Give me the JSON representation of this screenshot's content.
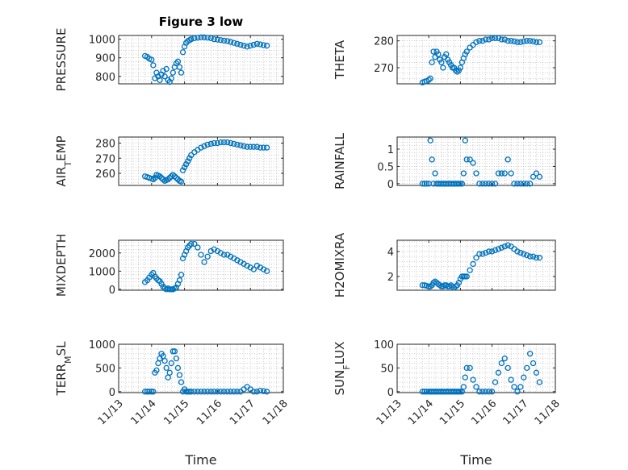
{
  "chart_data": [
    {
      "type": "scatter",
      "title": "Figure 3 low",
      "ylabel": "PRESSURE",
      "ylabel_parts": [
        {
          "t": "PRESSURE"
        }
      ],
      "xlabel": "",
      "xlim": [
        0,
        5
      ],
      "ylim": [
        760,
        1020
      ],
      "yticks": [
        800,
        900,
        1000
      ],
      "xticks": [
        0,
        1,
        2,
        3,
        4,
        5
      ],
      "xtick_labels": [
        "11/13",
        "11/14",
        "11/15",
        "11/16",
        "11/17",
        "11/18"
      ],
      "grid": true,
      "series": [
        {
          "x": [
            0.8,
            0.87,
            0.93,
            1.0,
            1.05,
            1.1,
            1.15,
            1.2,
            1.25,
            1.3,
            1.35,
            1.4,
            1.45,
            1.5,
            1.55,
            1.6,
            1.65,
            1.7,
            1.75,
            1.8,
            1.85,
            1.9,
            1.95,
            2.0,
            2.05,
            2.1,
            2.15,
            2.2,
            2.3,
            2.4,
            2.5,
            2.6,
            2.7,
            2.8,
            2.9,
            3.0,
            3.1,
            3.2,
            3.3,
            3.4,
            3.5,
            3.6,
            3.7,
            3.8,
            3.9,
            4.0,
            4.1,
            4.2,
            4.3,
            4.4,
            4.5
          ],
          "y": [
            910,
            905,
            895,
            890,
            860,
            790,
            820,
            800,
            780,
            810,
            830,
            800,
            840,
            780,
            770,
            790,
            820,
            850,
            870,
            880,
            850,
            820,
            930,
            960,
            980,
            990,
            995,
            1000,
            1005,
            1008,
            1010,
            1010,
            1008,
            1005,
            1000,
            998,
            995,
            992,
            990,
            985,
            980,
            975,
            970,
            965,
            960,
            965,
            970,
            975,
            972,
            968,
            965
          ]
        }
      ]
    },
    {
      "type": "scatter",
      "title": "",
      "ylabel": "THETA",
      "ylabel_parts": [
        {
          "t": "THETA"
        }
      ],
      "xlabel": "",
      "xlim": [
        0,
        5
      ],
      "ylim": [
        264,
        282
      ],
      "yticks": [
        270,
        280
      ],
      "xticks": [
        0,
        1,
        2,
        3,
        4,
        5
      ],
      "xtick_labels": [
        "11/13",
        "11/14",
        "11/15",
        "11/16",
        "11/17",
        "11/18"
      ],
      "grid": true,
      "series": [
        {
          "x": [
            0.8,
            0.87,
            0.93,
            1.0,
            1.05,
            1.1,
            1.15,
            1.2,
            1.25,
            1.3,
            1.35,
            1.4,
            1.45,
            1.5,
            1.55,
            1.6,
            1.65,
            1.7,
            1.75,
            1.8,
            1.85,
            1.9,
            1.95,
            2.0,
            2.05,
            2.1,
            2.15,
            2.2,
            2.3,
            2.4,
            2.5,
            2.6,
            2.7,
            2.8,
            2.9,
            3.0,
            3.1,
            3.2,
            3.3,
            3.4,
            3.5,
            3.6,
            3.7,
            3.8,
            3.9,
            4.0,
            4.1,
            4.2,
            4.3,
            4.4,
            4.5
          ],
          "y": [
            264.5,
            264.8,
            265.0,
            265.5,
            266,
            272,
            276,
            274,
            276,
            275,
            273,
            272,
            270,
            274,
            275,
            273,
            272,
            271,
            270,
            270,
            269,
            268.5,
            269,
            270,
            272,
            273.5,
            275,
            276,
            277.5,
            278.5,
            279.5,
            280,
            280,
            280.5,
            280.5,
            281,
            281,
            281,
            280.5,
            280.5,
            280,
            280,
            279.8,
            279.5,
            279.5,
            279.8,
            280,
            280,
            279.8,
            279.5,
            279.5
          ]
        }
      ]
    },
    {
      "type": "scatter",
      "title": "",
      "ylabel": "AIR_TEMP",
      "ylabel_parts": [
        {
          "t": "AIR"
        },
        {
          "t": "T",
          "sub": true
        },
        {
          "t": "EMP"
        }
      ],
      "xlabel": "",
      "xlim": [
        0,
        5
      ],
      "ylim": [
        252,
        284
      ],
      "yticks": [
        260,
        270,
        280
      ],
      "xticks": [
        0,
        1,
        2,
        3,
        4,
        5
      ],
      "xtick_labels": [
        "11/13",
        "11/14",
        "11/15",
        "11/16",
        "11/17",
        "11/18"
      ],
      "grid": true,
      "series": [
        {
          "x": [
            0.8,
            0.87,
            0.93,
            1.0,
            1.05,
            1.1,
            1.15,
            1.2,
            1.25,
            1.3,
            1.35,
            1.4,
            1.45,
            1.5,
            1.55,
            1.6,
            1.65,
            1.7,
            1.75,
            1.8,
            1.85,
            1.9,
            1.95,
            2.0,
            2.05,
            2.1,
            2.15,
            2.2,
            2.3,
            2.4,
            2.5,
            2.6,
            2.7,
            2.8,
            2.9,
            3.0,
            3.1,
            3.2,
            3.3,
            3.4,
            3.5,
            3.6,
            3.7,
            3.8,
            3.9,
            4.0,
            4.1,
            4.2,
            4.3,
            4.4,
            4.5
          ],
          "y": [
            258,
            257.5,
            257,
            256.5,
            256,
            257,
            259,
            258.5,
            258,
            257,
            256,
            255,
            255.5,
            256,
            257,
            258,
            259,
            258,
            257,
            256,
            255,
            254.5,
            262,
            264,
            266,
            268,
            270,
            272,
            274,
            275.5,
            277,
            278,
            279,
            279.5,
            280,
            280,
            280.5,
            280.5,
            280.5,
            280,
            279.5,
            279,
            278.5,
            278,
            277.5,
            277.5,
            277.5,
            277.5,
            277,
            277,
            277
          ]
        }
      ]
    },
    {
      "type": "scatter",
      "title": "",
      "ylabel": "RAINFALL",
      "ylabel_parts": [
        {
          "t": "RAINFALL"
        }
      ],
      "xlabel": "",
      "xlim": [
        0,
        5
      ],
      "ylim": [
        -0.05,
        1.35
      ],
      "yticks": [
        0,
        0.5,
        1
      ],
      "xticks": [
        0,
        1,
        2,
        3,
        4,
        5
      ],
      "xtick_labels": [
        "11/13",
        "11/14",
        "11/15",
        "11/16",
        "11/17",
        "11/18"
      ],
      "grid": true,
      "series": [
        {
          "x": [
            0.8,
            0.87,
            0.93,
            1.0,
            1.05,
            1.1,
            1.15,
            1.2,
            1.25,
            1.3,
            1.35,
            1.4,
            1.45,
            1.5,
            1.55,
            1.6,
            1.65,
            1.7,
            1.75,
            1.8,
            1.85,
            1.9,
            1.95,
            2.0,
            2.05,
            2.1,
            2.15,
            2.2,
            2.3,
            2.4,
            2.5,
            2.6,
            2.7,
            2.8,
            2.9,
            3.0,
            3.1,
            3.2,
            3.3,
            3.4,
            3.5,
            3.6,
            3.7,
            3.8,
            3.9,
            4.0,
            4.1,
            4.2,
            4.3,
            4.4,
            4.5
          ],
          "y": [
            0,
            0,
            0,
            0,
            1.25,
            0.7,
            0,
            0.3,
            0,
            0,
            0,
            0,
            0,
            0,
            0,
            0,
            0,
            0,
            0,
            0,
            0,
            0,
            0,
            0,
            0,
            0.3,
            1.25,
            0.7,
            0.7,
            0.6,
            0.3,
            0,
            0,
            0,
            0,
            0,
            0,
            0.3,
            0.3,
            0.3,
            0.7,
            0.3,
            0,
            0,
            0,
            0,
            0,
            0,
            0.2,
            0.3,
            0.2
          ]
        }
      ]
    },
    {
      "type": "scatter",
      "title": "",
      "ylabel": "MIXDEPTH",
      "ylabel_parts": [
        {
          "t": "MIXDEPTH"
        }
      ],
      "xlabel": "",
      "xlim": [
        0,
        5
      ],
      "ylim": [
        -50,
        2700
      ],
      "yticks": [
        0,
        1000,
        2000
      ],
      "xticks": [
        0,
        1,
        2,
        3,
        4,
        5
      ],
      "xtick_labels": [
        "11/13",
        "11/14",
        "11/15",
        "11/16",
        "11/17",
        "11/18"
      ],
      "grid": true,
      "series": [
        {
          "x": [
            0.8,
            0.87,
            0.93,
            1.0,
            1.05,
            1.1,
            1.15,
            1.2,
            1.25,
            1.3,
            1.35,
            1.4,
            1.45,
            1.5,
            1.55,
            1.6,
            1.65,
            1.7,
            1.75,
            1.8,
            1.85,
            1.9,
            1.95,
            2.0,
            2.05,
            2.1,
            2.15,
            2.2,
            2.3,
            2.4,
            2.5,
            2.6,
            2.7,
            2.8,
            2.9,
            3.0,
            3.1,
            3.2,
            3.3,
            3.4,
            3.5,
            3.6,
            3.7,
            3.8,
            3.9,
            4.0,
            4.1,
            4.2,
            4.3,
            4.4,
            4.5
          ],
          "y": [
            400,
            500,
            650,
            800,
            900,
            700,
            600,
            500,
            450,
            300,
            150,
            50,
            0,
            50,
            0,
            0,
            0,
            50,
            100,
            300,
            500,
            800,
            1700,
            1900,
            2100,
            2300,
            2400,
            2500,
            2500,
            2300,
            1900,
            1500,
            1800,
            2100,
            2200,
            2100,
            2000,
            1900,
            1900,
            1800,
            1700,
            1600,
            1500,
            1400,
            1300,
            1200,
            1100,
            1300,
            1200,
            1100,
            1000
          ]
        }
      ]
    },
    {
      "type": "scatter",
      "title": "",
      "ylabel": "H2OMIXRA",
      "ylabel_parts": [
        {
          "t": "H2OMIXRA"
        }
      ],
      "xlabel": "",
      "xlim": [
        0,
        5
      ],
      "ylim": [
        0.9,
        4.9
      ],
      "yticks": [
        2,
        4
      ],
      "xticks": [
        0,
        1,
        2,
        3,
        4,
        5
      ],
      "xtick_labels": [
        "11/13",
        "11/14",
        "11/15",
        "11/16",
        "11/17",
        "11/18"
      ],
      "grid": true,
      "series": [
        {
          "x": [
            0.8,
            0.87,
            0.93,
            1.0,
            1.05,
            1.1,
            1.15,
            1.2,
            1.25,
            1.3,
            1.35,
            1.4,
            1.45,
            1.5,
            1.55,
            1.6,
            1.65,
            1.7,
            1.75,
            1.8,
            1.85,
            1.9,
            1.95,
            2.0,
            2.05,
            2.1,
            2.15,
            2.2,
            2.3,
            2.4,
            2.5,
            2.6,
            2.7,
            2.8,
            2.9,
            3.0,
            3.1,
            3.2,
            3.3,
            3.4,
            3.5,
            3.6,
            3.7,
            3.8,
            3.9,
            4.0,
            4.1,
            4.2,
            4.3,
            4.4,
            4.5
          ],
          "y": [
            1.3,
            1.3,
            1.25,
            1.2,
            1.2,
            1.3,
            1.5,
            1.6,
            1.5,
            1.4,
            1.3,
            1.2,
            1.2,
            1.3,
            1.3,
            1.2,
            1.2,
            1.3,
            1.2,
            1.1,
            1.2,
            1.3,
            1.5,
            1.8,
            2.0,
            2.0,
            2.0,
            2.0,
            2.5,
            3.0,
            3.5,
            3.8,
            3.8,
            3.9,
            4.0,
            4.0,
            4.1,
            4.2,
            4.3,
            4.4,
            4.5,
            4.4,
            4.2,
            4.0,
            3.9,
            3.8,
            3.7,
            3.6,
            3.6,
            3.5,
            3.5
          ]
        }
      ]
    },
    {
      "type": "scatter",
      "title": "",
      "ylabel": "TERR_MSL",
      "ylabel_parts": [
        {
          "t": "TERR"
        },
        {
          "t": "M",
          "sub": true
        },
        {
          "t": "SL"
        }
      ],
      "xlabel": "Time",
      "xlim": [
        0,
        5
      ],
      "ylim": [
        -20,
        1000
      ],
      "yticks": [
        0,
        500,
        1000
      ],
      "xticks": [
        0,
        1,
        2,
        3,
        4,
        5
      ],
      "xtick_labels": [
        "11/13",
        "11/14",
        "11/15",
        "11/16",
        "11/17",
        "11/18"
      ],
      "grid": true,
      "series": [
        {
          "x": [
            0.8,
            0.87,
            0.93,
            1.0,
            1.05,
            1.1,
            1.15,
            1.2,
            1.25,
            1.3,
            1.35,
            1.4,
            1.45,
            1.5,
            1.55,
            1.6,
            1.65,
            1.7,
            1.75,
            1.8,
            1.85,
            1.9,
            1.95,
            2.0,
            2.05,
            2.1,
            2.15,
            2.2,
            2.3,
            2.4,
            2.5,
            2.6,
            2.7,
            2.8,
            2.9,
            3.0,
            3.1,
            3.2,
            3.3,
            3.4,
            3.5,
            3.6,
            3.7,
            3.8,
            3.9,
            4.0,
            4.1,
            4.2,
            4.3,
            4.4,
            4.5
          ],
          "y": [
            0,
            0,
            0,
            0,
            0,
            400,
            450,
            600,
            700,
            800,
            750,
            650,
            500,
            300,
            400,
            600,
            850,
            850,
            700,
            500,
            350,
            200,
            0,
            50,
            0,
            0,
            0,
            0,
            0,
            0,
            0,
            0,
            0,
            0,
            0,
            0,
            0,
            0,
            0,
            0,
            0,
            0,
            0,
            50,
            100,
            50,
            0,
            0,
            20,
            10,
            0
          ]
        }
      ]
    },
    {
      "type": "scatter",
      "title": "",
      "ylabel": "SUN_FLUX",
      "ylabel_parts": [
        {
          "t": "SUN"
        },
        {
          "t": "F",
          "sub": true
        },
        {
          "t": "LUX"
        }
      ],
      "xlabel": "Time",
      "xlim": [
        0,
        5
      ],
      "ylim": [
        -2,
        100
      ],
      "yticks": [
        0,
        50,
        100
      ],
      "xticks": [
        0,
        1,
        2,
        3,
        4,
        5
      ],
      "xtick_labels": [
        "11/13",
        "11/14",
        "11/15",
        "11/16",
        "11/17",
        "11/18"
      ],
      "grid": true,
      "series": [
        {
          "x": [
            0.8,
            0.87,
            0.93,
            1.0,
            1.05,
            1.1,
            1.15,
            1.2,
            1.25,
            1.3,
            1.35,
            1.4,
            1.45,
            1.5,
            1.55,
            1.6,
            1.65,
            1.7,
            1.75,
            1.8,
            1.85,
            1.9,
            1.95,
            2.0,
            2.05,
            2.1,
            2.15,
            2.2,
            2.3,
            2.4,
            2.5,
            2.6,
            2.7,
            2.8,
            2.9,
            3.0,
            3.1,
            3.2,
            3.3,
            3.4,
            3.5,
            3.6,
            3.7,
            3.8,
            3.9,
            4.0,
            4.1,
            4.2,
            4.3,
            4.4,
            4.5
          ],
          "y": [
            0,
            0,
            0,
            0,
            0,
            0,
            0,
            0,
            0,
            0,
            0,
            0,
            0,
            0,
            0,
            0,
            0,
            0,
            0,
            0,
            0,
            0,
            0,
            0,
            0,
            10,
            30,
            50,
            50,
            25,
            10,
            0,
            0,
            0,
            0,
            0,
            20,
            40,
            60,
            70,
            50,
            25,
            10,
            0,
            10,
            30,
            50,
            80,
            60,
            40,
            20
          ]
        }
      ]
    }
  ]
}
